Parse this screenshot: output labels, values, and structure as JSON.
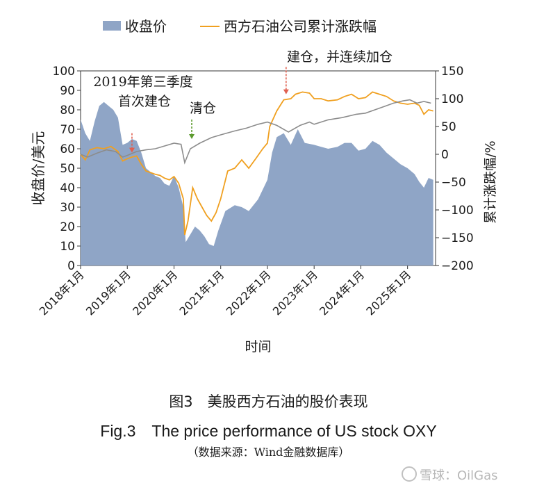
{
  "chart_data": {
    "type": "area+line",
    "title": "",
    "legend": {
      "placement": "top",
      "entries": [
        {
          "name": "收盘价",
          "kind": "area",
          "color": "#8fa5c6"
        },
        {
          "name": "西方石油公司累计涨跌幅",
          "kind": "line",
          "color": "#f0a020"
        }
      ]
    },
    "xlabel": "时间",
    "ylabel_left": "收盘价/美元",
    "ylabel_right": "累计涨跌幅/%",
    "x_range": [
      2018.0,
      2025.6
    ],
    "x_ticks": [
      {
        "x": 2018,
        "label": "2018年1月"
      },
      {
        "x": 2019,
        "label": "2019年1月"
      },
      {
        "x": 2020,
        "label": "2020年1月"
      },
      {
        "x": 2021,
        "label": "2021年1月"
      },
      {
        "x": 2022,
        "label": "2022年1月"
      },
      {
        "x": 2023,
        "label": "2023年1月"
      },
      {
        "x": 2024,
        "label": "2024年1月"
      },
      {
        "x": 2025,
        "label": "2025年1月"
      }
    ],
    "ylim_left": [
      0,
      100
    ],
    "yticks_left": [
      0,
      10,
      20,
      30,
      40,
      50,
      60,
      70,
      80,
      90,
      100
    ],
    "ylim_right": [
      -200,
      150
    ],
    "yticks_right": [
      -200,
      -150,
      -100,
      -50,
      0,
      50,
      100,
      150
    ],
    "series": [
      {
        "name": "收盘价",
        "axis": "left",
        "color": "#8fa5c6",
        "points": [
          [
            2018.0,
            75
          ],
          [
            2018.1,
            68
          ],
          [
            2018.2,
            64
          ],
          [
            2018.3,
            74
          ],
          [
            2018.4,
            82
          ],
          [
            2018.5,
            84
          ],
          [
            2018.6,
            82
          ],
          [
            2018.7,
            80
          ],
          [
            2018.8,
            76
          ],
          [
            2018.9,
            62
          ],
          [
            2019.0,
            63
          ],
          [
            2019.1,
            65
          ],
          [
            2019.2,
            64
          ],
          [
            2019.3,
            58
          ],
          [
            2019.4,
            50
          ],
          [
            2019.5,
            48
          ],
          [
            2019.6,
            46
          ],
          [
            2019.7,
            45
          ],
          [
            2019.8,
            42
          ],
          [
            2019.9,
            41
          ],
          [
            2020.0,
            46
          ],
          [
            2020.1,
            40
          ],
          [
            2020.2,
            30
          ],
          [
            2020.25,
            12
          ],
          [
            2020.35,
            16
          ],
          [
            2020.45,
            20
          ],
          [
            2020.55,
            18
          ],
          [
            2020.65,
            15
          ],
          [
            2020.75,
            11
          ],
          [
            2020.85,
            10
          ],
          [
            2020.95,
            18
          ],
          [
            2021.1,
            28
          ],
          [
            2021.3,
            31
          ],
          [
            2021.45,
            30
          ],
          [
            2021.6,
            28
          ],
          [
            2021.8,
            34
          ],
          [
            2022.0,
            44
          ],
          [
            2022.1,
            58
          ],
          [
            2022.2,
            66
          ],
          [
            2022.35,
            68
          ],
          [
            2022.5,
            62
          ],
          [
            2022.65,
            70
          ],
          [
            2022.8,
            63
          ],
          [
            2023.0,
            62
          ],
          [
            2023.15,
            61
          ],
          [
            2023.3,
            60
          ],
          [
            2023.5,
            61
          ],
          [
            2023.65,
            63
          ],
          [
            2023.8,
            63
          ],
          [
            2023.95,
            59
          ],
          [
            2024.1,
            60
          ],
          [
            2024.25,
            64
          ],
          [
            2024.4,
            62
          ],
          [
            2024.55,
            58
          ],
          [
            2024.7,
            55
          ],
          [
            2024.85,
            52
          ],
          [
            2025.0,
            50
          ],
          [
            2025.15,
            47
          ],
          [
            2025.25,
            43
          ],
          [
            2025.35,
            40
          ],
          [
            2025.45,
            45
          ],
          [
            2025.55,
            44
          ]
        ]
      },
      {
        "name": "西方石油公司累计涨跌幅",
        "axis": "right",
        "color": "#f0a020",
        "points": [
          [
            2018.0,
            0
          ],
          [
            2018.1,
            -10
          ],
          [
            2018.2,
            8
          ],
          [
            2018.35,
            12
          ],
          [
            2018.5,
            10
          ],
          [
            2018.65,
            14
          ],
          [
            2018.8,
            5
          ],
          [
            2018.9,
            -12
          ],
          [
            2019.0,
            -8
          ],
          [
            2019.1,
            -5
          ],
          [
            2019.2,
            -3
          ],
          [
            2019.3,
            -18
          ],
          [
            2019.4,
            -30
          ],
          [
            2019.5,
            -33
          ],
          [
            2019.6,
            -36
          ],
          [
            2019.7,
            -38
          ],
          [
            2019.8,
            -43
          ],
          [
            2019.9,
            -46
          ],
          [
            2020.0,
            -40
          ],
          [
            2020.1,
            -52
          ],
          [
            2020.2,
            -80
          ],
          [
            2020.23,
            -145
          ],
          [
            2020.3,
            -120
          ],
          [
            2020.4,
            -60
          ],
          [
            2020.5,
            -80
          ],
          [
            2020.6,
            -95
          ],
          [
            2020.7,
            -110
          ],
          [
            2020.8,
            -120
          ],
          [
            2020.9,
            -105
          ],
          [
            2021.0,
            -80
          ],
          [
            2021.15,
            -30
          ],
          [
            2021.3,
            -25
          ],
          [
            2021.45,
            -10
          ],
          [
            2021.6,
            -25
          ],
          [
            2021.75,
            -8
          ],
          [
            2021.9,
            10
          ],
          [
            2022.0,
            20
          ],
          [
            2022.05,
            50
          ],
          [
            2022.2,
            78
          ],
          [
            2022.35,
            98
          ],
          [
            2022.5,
            100
          ],
          [
            2022.6,
            108
          ],
          [
            2022.75,
            112
          ],
          [
            2022.9,
            110
          ],
          [
            2023.0,
            100
          ],
          [
            2023.15,
            100
          ],
          [
            2023.3,
            96
          ],
          [
            2023.5,
            98
          ],
          [
            2023.65,
            104
          ],
          [
            2023.8,
            108
          ],
          [
            2023.95,
            100
          ],
          [
            2024.1,
            102
          ],
          [
            2024.25,
            112
          ],
          [
            2024.4,
            108
          ],
          [
            2024.55,
            104
          ],
          [
            2024.7,
            96
          ],
          [
            2024.85,
            92
          ],
          [
            2025.0,
            90
          ],
          [
            2025.15,
            92
          ],
          [
            2025.25,
            88
          ],
          [
            2025.35,
            72
          ],
          [
            2025.45,
            80
          ],
          [
            2025.55,
            78
          ]
        ]
      },
      {
        "name": "",
        "axis": "right",
        "color": "#8c8c8c",
        "points": [
          [
            2018.0,
            0
          ],
          [
            2018.15,
            -5
          ],
          [
            2018.35,
            2
          ],
          [
            2018.55,
            8
          ],
          [
            2018.75,
            5
          ],
          [
            2018.9,
            -5
          ],
          [
            2019.0,
            -2
          ],
          [
            2019.2,
            5
          ],
          [
            2019.4,
            8
          ],
          [
            2019.6,
            10
          ],
          [
            2019.8,
            15
          ],
          [
            2020.0,
            20
          ],
          [
            2020.15,
            18
          ],
          [
            2020.23,
            -15
          ],
          [
            2020.35,
            10
          ],
          [
            2020.55,
            20
          ],
          [
            2020.8,
            30
          ],
          [
            2021.0,
            35
          ],
          [
            2021.3,
            42
          ],
          [
            2021.55,
            47
          ],
          [
            2021.8,
            54
          ],
          [
            2022.0,
            58
          ],
          [
            2022.2,
            52
          ],
          [
            2022.45,
            40
          ],
          [
            2022.7,
            52
          ],
          [
            2022.9,
            58
          ],
          [
            2023.0,
            54
          ],
          [
            2023.3,
            62
          ],
          [
            2023.6,
            66
          ],
          [
            2023.9,
            72
          ],
          [
            2024.1,
            74
          ],
          [
            2024.3,
            80
          ],
          [
            2024.5,
            86
          ],
          [
            2024.7,
            92
          ],
          [
            2024.9,
            96
          ],
          [
            2025.05,
            98
          ],
          [
            2025.2,
            92
          ],
          [
            2025.35,
            95
          ],
          [
            2025.5,
            92
          ]
        ]
      }
    ],
    "annotations": [
      {
        "text": "2019年第三季度",
        "x": 2019.55,
        "color": "#1a1a1a"
      },
      {
        "text": "首次建仓",
        "x": 2019.55,
        "color": "#1a1a1a"
      },
      {
        "text": "清仓",
        "x": 2020.4,
        "color": "#1a1a1a"
      },
      {
        "text": "建仓，并连续加仓",
        "x": 2022.3,
        "color": "#1a1a1a"
      }
    ],
    "arrows": [
      {
        "x": 2019.1,
        "from": 68,
        "to": 58,
        "axis": "left",
        "color": "#e06050"
      },
      {
        "x": 2020.38,
        "from": 75,
        "to": 65,
        "axis": "left",
        "color": "#5c9a2e"
      },
      {
        "x": 2022.4,
        "from": 102,
        "to": 88,
        "axis": "left",
        "color": "#e06050"
      }
    ],
    "grid": false
  },
  "captions": {
    "zh": "图3　美股西方石油的股价表现",
    "en": "Fig.3　The price performance of US stock OXY",
    "source": "（数据来源：Wind金融数据库）"
  },
  "watermark": {
    "text": "雪球：OilGas"
  }
}
